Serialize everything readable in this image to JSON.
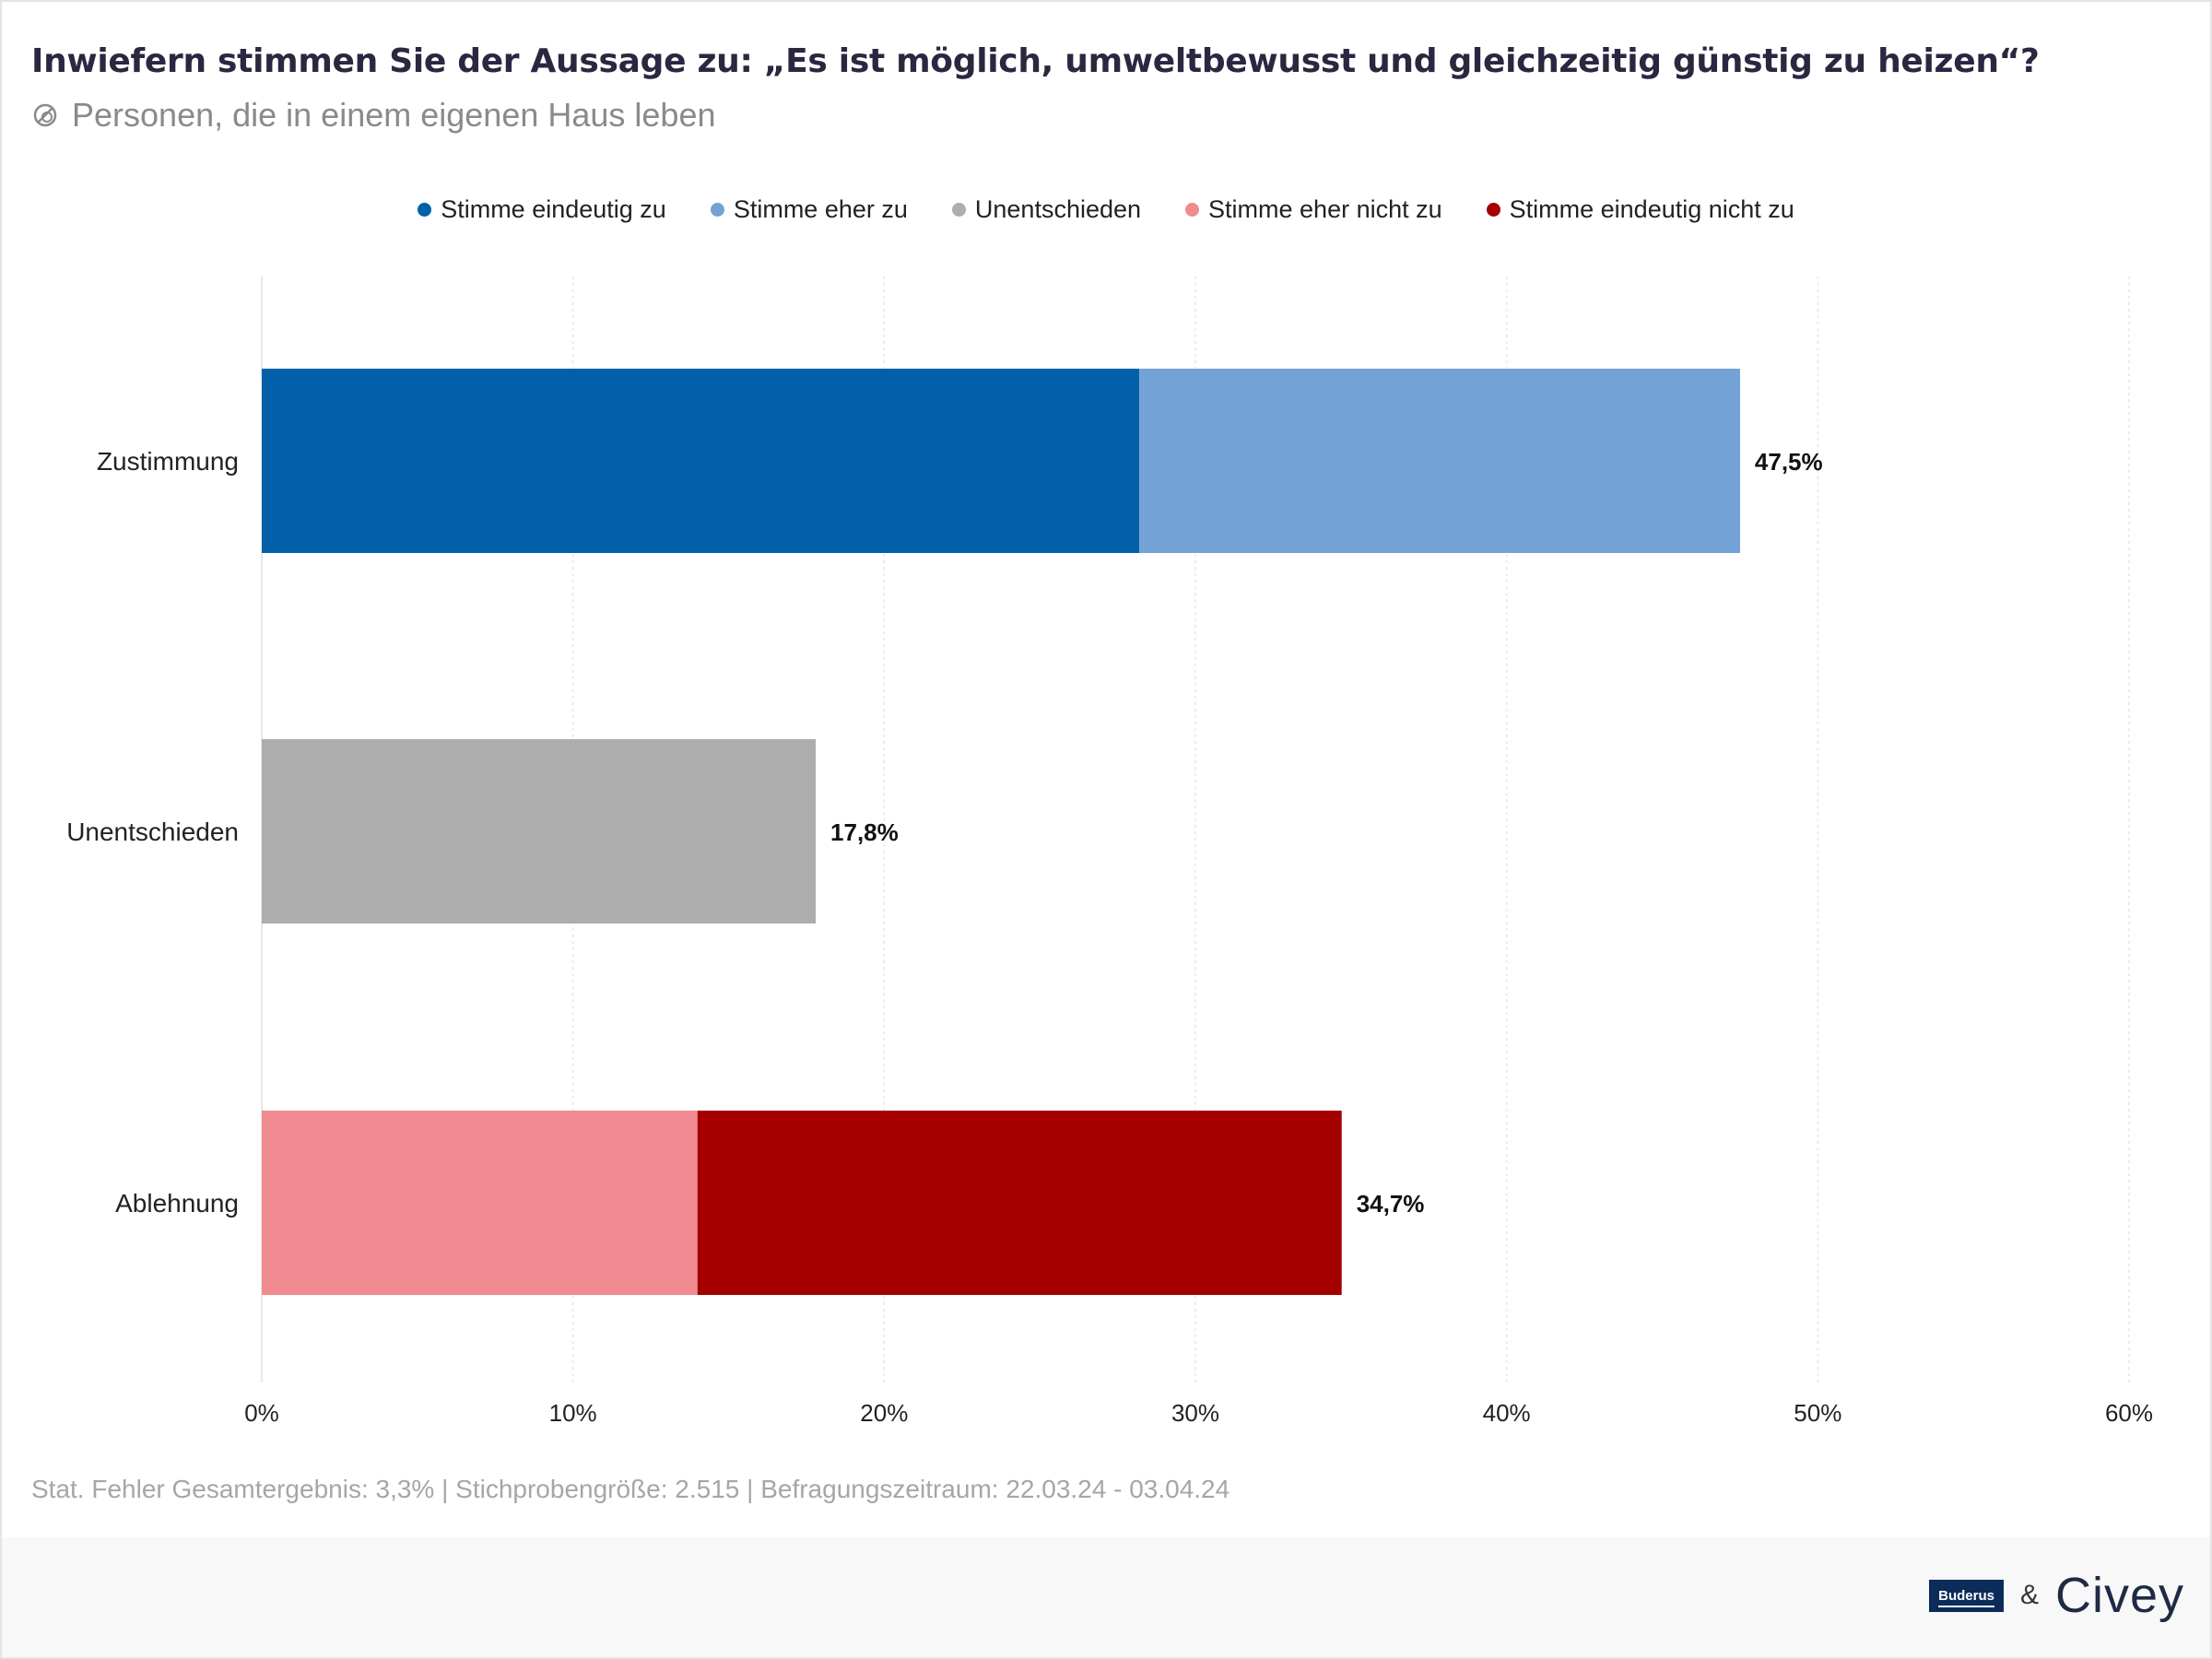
{
  "header": {
    "title": "Inwiefern stimmen Sie der Aussage zu: „Es ist möglich, umweltbewusst und gleichzeitig günstig zu heizen“?",
    "subtitle": "Personen, die in einem eigenen Haus leben",
    "subtitle_icon": "filter-icon"
  },
  "footer": {
    "note": "Stat. Fehler Gesamtergebnis: 3,3% | Stichprobengröße: 2.515 | Befragungszeitraum: 22.03.24 - 03.04.24",
    "brand_left": "Buderus",
    "ampersand": "&",
    "brand_right": "Civey"
  },
  "chart_data": {
    "type": "bar",
    "orientation": "horizontal",
    "stacked": true,
    "categories": [
      "Zustimmung",
      "Unentschieden",
      "Ablehnung"
    ],
    "series": [
      {
        "name": "Stimme eindeutig zu",
        "color": "#0260a8",
        "values": [
          28.2,
          0,
          0
        ]
      },
      {
        "name": "Stimme eher zu",
        "color": "#73a2d6",
        "values": [
          19.3,
          0,
          0
        ]
      },
      {
        "name": "Unentschieden",
        "color": "#adadad",
        "values": [
          0,
          17.8,
          0
        ]
      },
      {
        "name": "Stimme eher nicht zu",
        "color": "#f18a91",
        "values": [
          0,
          0,
          14.0
        ]
      },
      {
        "name": "Stimme eindeutig nicht zu",
        "color": "#a50000",
        "values": [
          0,
          0,
          20.7
        ]
      }
    ],
    "totals": [
      47.5,
      17.8,
      34.7
    ],
    "total_labels": [
      "47,5%",
      "17,8%",
      "34,7%"
    ],
    "xlim": [
      0,
      60
    ],
    "xticks": [
      0,
      10,
      20,
      30,
      40,
      50,
      60
    ],
    "xtick_labels": [
      "0%",
      "10%",
      "20%",
      "30%",
      "40%",
      "50%",
      "60%"
    ],
    "grid": true,
    "legend_position": "top-center"
  }
}
